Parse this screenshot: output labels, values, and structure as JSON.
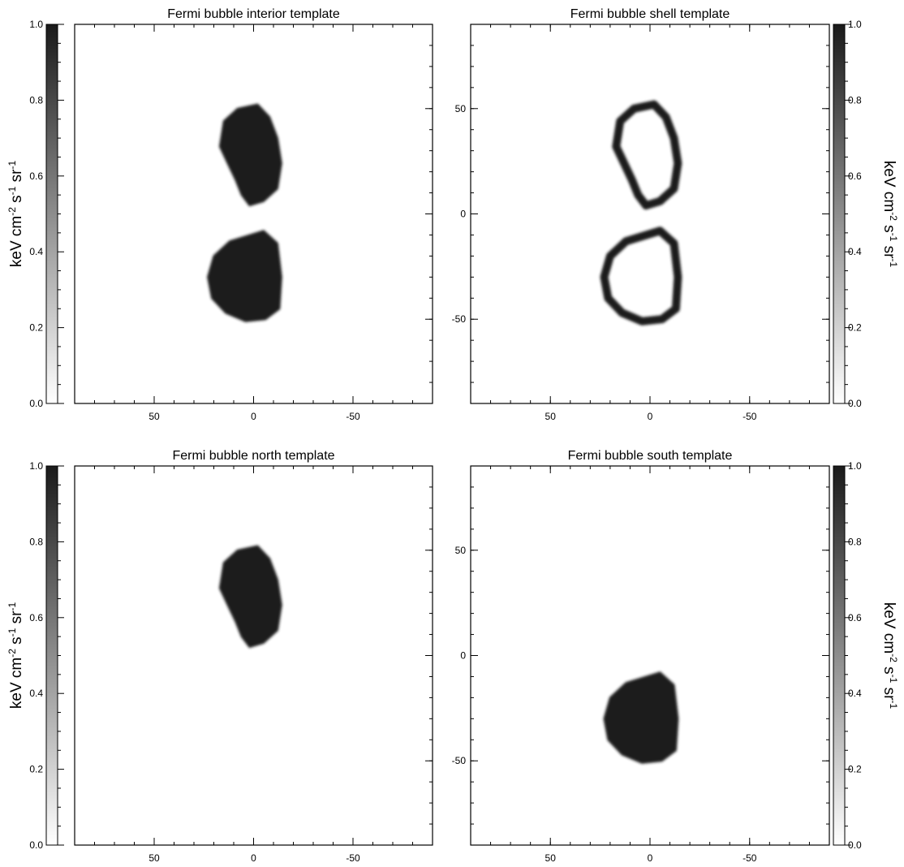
{
  "colors": {
    "bubble": "#1f1f1f",
    "frame": "#000000",
    "background": "#ffffff"
  },
  "colorbar": {
    "ticks": [
      "0.0",
      "0.2",
      "0.4",
      "0.6",
      "0.8",
      "1.0"
    ],
    "range": [
      0,
      1
    ],
    "colormap": "grayscale"
  },
  "unit_label": {
    "prefix": "keV cm",
    "exp1": "-2",
    "mid1": " s",
    "exp2": "-1",
    "mid2": " sr",
    "exp3": "-1"
  },
  "axis": {
    "x_ticks": [
      "50",
      "0",
      "-50"
    ],
    "y_ticks": [
      "50",
      "0",
      "-50"
    ],
    "xlim": [
      90,
      -90
    ],
    "ylim": [
      -90,
      90
    ]
  },
  "chart_data": [
    {
      "type": "heatmap",
      "title": "Fermi bubble interior template",
      "colorbar_side": "left",
      "regions": [
        {
          "role": "north-lobe",
          "style": "filled",
          "value": 1.0,
          "outline": [
            [
              -2,
              52
            ],
            [
              8,
              50
            ],
            [
              15,
              44
            ],
            [
              17,
              32
            ],
            [
              13,
              24
            ],
            [
              9,
              16
            ],
            [
              6,
              9
            ],
            [
              2,
              4
            ],
            [
              -5,
              6
            ],
            [
              -12,
              12
            ],
            [
              -14,
              24
            ],
            [
              -12,
              36
            ],
            [
              -8,
              46
            ],
            [
              -4,
              50
            ]
          ]
        },
        {
          "role": "south-lobe",
          "style": "filled",
          "value": 1.0,
          "outline": [
            [
              -5,
              -8
            ],
            [
              -12,
              -14
            ],
            [
              -14,
              -30
            ],
            [
              -13,
              -45
            ],
            [
              -6,
              -50
            ],
            [
              4,
              -51
            ],
            [
              14,
              -47
            ],
            [
              21,
              -40
            ],
            [
              23,
              -30
            ],
            [
              20,
              -20
            ],
            [
              12,
              -13
            ]
          ]
        }
      ]
    },
    {
      "type": "heatmap",
      "title": "Fermi bubble shell template",
      "colorbar_side": "right",
      "regions": [
        {
          "role": "north-lobe",
          "style": "outline",
          "value": 1.0,
          "outline": [
            [
              -2,
              52
            ],
            [
              8,
              50
            ],
            [
              15,
              44
            ],
            [
              17,
              32
            ],
            [
              13,
              24
            ],
            [
              9,
              16
            ],
            [
              6,
              9
            ],
            [
              2,
              4
            ],
            [
              -5,
              6
            ],
            [
              -12,
              12
            ],
            [
              -14,
              24
            ],
            [
              -12,
              36
            ],
            [
              -8,
              46
            ],
            [
              -4,
              50
            ]
          ]
        },
        {
          "role": "south-lobe",
          "style": "outline",
          "value": 1.0,
          "outline": [
            [
              -5,
              -8
            ],
            [
              -12,
              -14
            ],
            [
              -14,
              -30
            ],
            [
              -13,
              -45
            ],
            [
              -6,
              -50
            ],
            [
              4,
              -51
            ],
            [
              14,
              -47
            ],
            [
              21,
              -40
            ],
            [
              23,
              -30
            ],
            [
              20,
              -20
            ],
            [
              12,
              -13
            ]
          ]
        }
      ]
    },
    {
      "type": "heatmap",
      "title": "Fermi bubble north template",
      "colorbar_side": "left",
      "regions": [
        {
          "role": "north-lobe",
          "style": "filled",
          "value": 1.0,
          "outline": [
            [
              -2,
              52
            ],
            [
              8,
              50
            ],
            [
              15,
              44
            ],
            [
              17,
              32
            ],
            [
              13,
              24
            ],
            [
              9,
              16
            ],
            [
              6,
              9
            ],
            [
              2,
              4
            ],
            [
              -5,
              6
            ],
            [
              -12,
              12
            ],
            [
              -14,
              24
            ],
            [
              -12,
              36
            ],
            [
              -8,
              46
            ],
            [
              -4,
              50
            ]
          ]
        }
      ]
    },
    {
      "type": "heatmap",
      "title": "Fermi bubble south template",
      "colorbar_side": "right",
      "regions": [
        {
          "role": "south-lobe",
          "style": "filled",
          "value": 1.0,
          "outline": [
            [
              -5,
              -8
            ],
            [
              -12,
              -14
            ],
            [
              -14,
              -30
            ],
            [
              -13,
              -45
            ],
            [
              -6,
              -50
            ],
            [
              4,
              -51
            ],
            [
              14,
              -47
            ],
            [
              21,
              -40
            ],
            [
              23,
              -30
            ],
            [
              20,
              -20
            ],
            [
              12,
              -13
            ]
          ]
        }
      ]
    }
  ]
}
